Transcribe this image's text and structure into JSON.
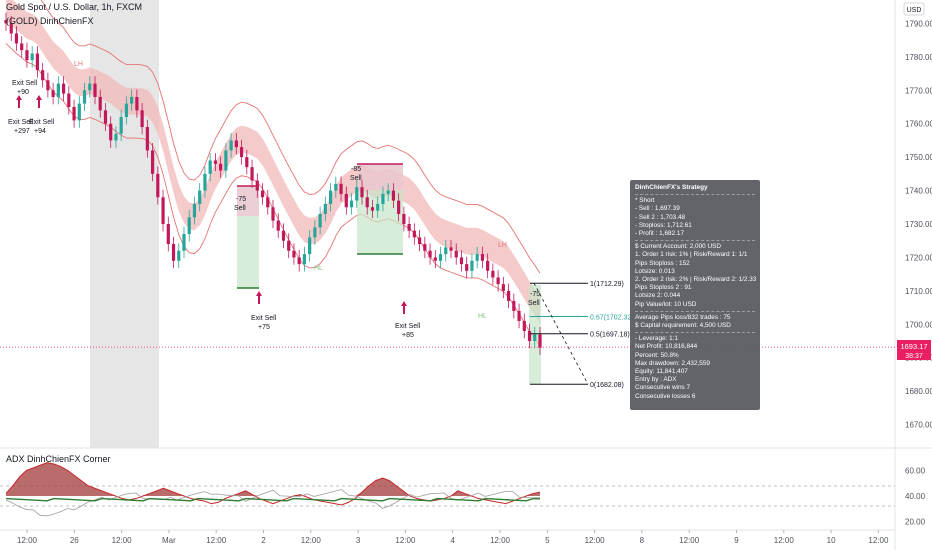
{
  "header": {
    "symbol_line": "Gold Spot / U.S. Dollar, 1h, FXCM",
    "sub_line": "(GOLD) DinhChienFX"
  },
  "price_axis": {
    "unit_label": "USD",
    "ticks": [
      "1790.00",
      "1780.00",
      "1770.00",
      "1760.00",
      "1750.00",
      "1740.00",
      "1730.00",
      "1720.00",
      "1710.00",
      "1700.00",
      "1690.00",
      "1680.00",
      "1670.00"
    ],
    "current_price": "1693.17",
    "countdown": "38:37"
  },
  "time_axis": {
    "ticks": [
      "12:00",
      "26",
      "12:00",
      "Mar",
      "12:00",
      "2",
      "12:00",
      "3",
      "12:00",
      "4",
      "12:00",
      "5",
      "12:00",
      "8",
      "12:00",
      "9",
      "12:00",
      "10",
      "12:00"
    ]
  },
  "oscillator": {
    "title": "ADX DinhChienFX Corner",
    "ticks": [
      "60.00",
      "40.00",
      "20.00"
    ]
  },
  "trade_levels": [
    {
      "label": "1(1712.29)",
      "price": 1712.29,
      "color": "#131722"
    },
    {
      "label": "0.67(1702.32)",
      "price": 1702.32,
      "color": "#26a69a"
    },
    {
      "label": "0.5(1697.18)",
      "price": 1697.18,
      "color": "#131722"
    },
    {
      "label": "0(1682.08)",
      "price": 1682.08,
      "color": "#131722"
    }
  ],
  "annotations": {
    "exit_sell_1": "Exit Sell",
    "exit_sell_1_val": "+90",
    "exit_sell_2": "Exit Sell",
    "exit_sell_2_val": "+297",
    "exit_sell_3": "Exit Sell",
    "exit_sell_3_val": "+94",
    "exit_sell_4": "Exit Sell",
    "exit_sell_4_val": "+75",
    "exit_sell_5": "Exit Sell",
    "exit_sell_5_val": "+85",
    "sell_1": "-75",
    "sell_1_lbl": "Sell",
    "sell_2": "-85",
    "sell_2_lbl": "Sell",
    "sell_3": "-75",
    "sell_3_lbl": "Sell",
    "lh": "LH",
    "hl": "HL"
  },
  "strategy_box": {
    "title": "DinhChienFX's Strategy",
    "lines": [
      "* Short",
      " - Sell   : 1,697.39",
      " - Sell 2 : 1,703.48",
      " - Stoploss: 1,712.61",
      " - Profit  : 1,682.17",
      "$ Current Account: 2,000 USD",
      "1. Order 1 risk: 1% | Risk/Reward 1: 1/1",
      "  Pips Stoploss : 152",
      "  Lotsize: 0.013",
      "2. Order 2 risk: 2% | Risk/Reward 2: 1/2.33",
      "  Pips Stoploss 2 : 91",
      "  Lotsize 2: 0.044",
      "Pip Value/lot: 10 USD",
      "Average Pips loss/832 trades : 75",
      "$ Capital requirement: 4,500 USD",
      "- Leverage: 1:1",
      "Net Profit: 10,816,844",
      "Percent: 50.8%",
      "Max drawdown: 2,432,559",
      "Equity: 11,841,407",
      "Entry by : ADX",
      "Consecutive wins 7",
      "Consecutive losses 6"
    ]
  },
  "colors": {
    "up": "#26a69a",
    "down": "#c2185b",
    "band": "#e57373",
    "band_fill": "#f2b8b8",
    "adx_line": "#c62828",
    "adx_fill": "#a33a3a",
    "price_line": "#e91e63"
  },
  "chart_data": {
    "type": "candlestick",
    "ylim": [
      1663,
      1797
    ],
    "close_series": [
      1790,
      1787,
      1784,
      1782,
      1779,
      1781,
      1776,
      1773,
      1770,
      1768,
      1772,
      1769,
      1765,
      1761,
      1766,
      1770,
      1772,
      1768,
      1764,
      1760,
      1755,
      1757,
      1762,
      1766,
      1768,
      1764,
      1759,
      1752,
      1745,
      1738,
      1730,
      1724,
      1719,
      1722,
      1727,
      1732,
      1736,
      1740,
      1745,
      1749,
      1748,
      1746,
      1752,
      1755,
      1753,
      1750,
      1747,
      1743,
      1740,
      1738,
      1735,
      1731,
      1728,
      1725,
      1722,
      1720,
      1718,
      1721,
      1726,
      1729,
      1733,
      1736,
      1740,
      1742,
      1739,
      1735,
      1737,
      1741,
      1738,
      1735,
      1734,
      1736,
      1739,
      1740,
      1737,
      1733,
      1730,
      1728,
      1726,
      1724,
      1722,
      1720,
      1719,
      1721,
      1723,
      1722,
      1720,
      1718,
      1716,
      1719,
      1721,
      1719,
      1716,
      1714,
      1712,
      1710,
      1707,
      1704,
      1701,
      1698,
      1695,
      1697,
      1693
    ],
    "adx_series": [
      42,
      48,
      55,
      60,
      62,
      64,
      66,
      65,
      63,
      60,
      56,
      52,
      48,
      46,
      44,
      42,
      40,
      38,
      37,
      38,
      40,
      42,
      44,
      46,
      44,
      42,
      40,
      38,
      37,
      36,
      34,
      35,
      38,
      40,
      42,
      44,
      41,
      38,
      36,
      34,
      36,
      38,
      40,
      41,
      39,
      37,
      36,
      35,
      34,
      33,
      35,
      38,
      43,
      48,
      52,
      54,
      52,
      48,
      44,
      40,
      38,
      37,
      36,
      37,
      38,
      40,
      44,
      42,
      40,
      38,
      37,
      36,
      35,
      34,
      36,
      38,
      40,
      42,
      43
    ]
  }
}
